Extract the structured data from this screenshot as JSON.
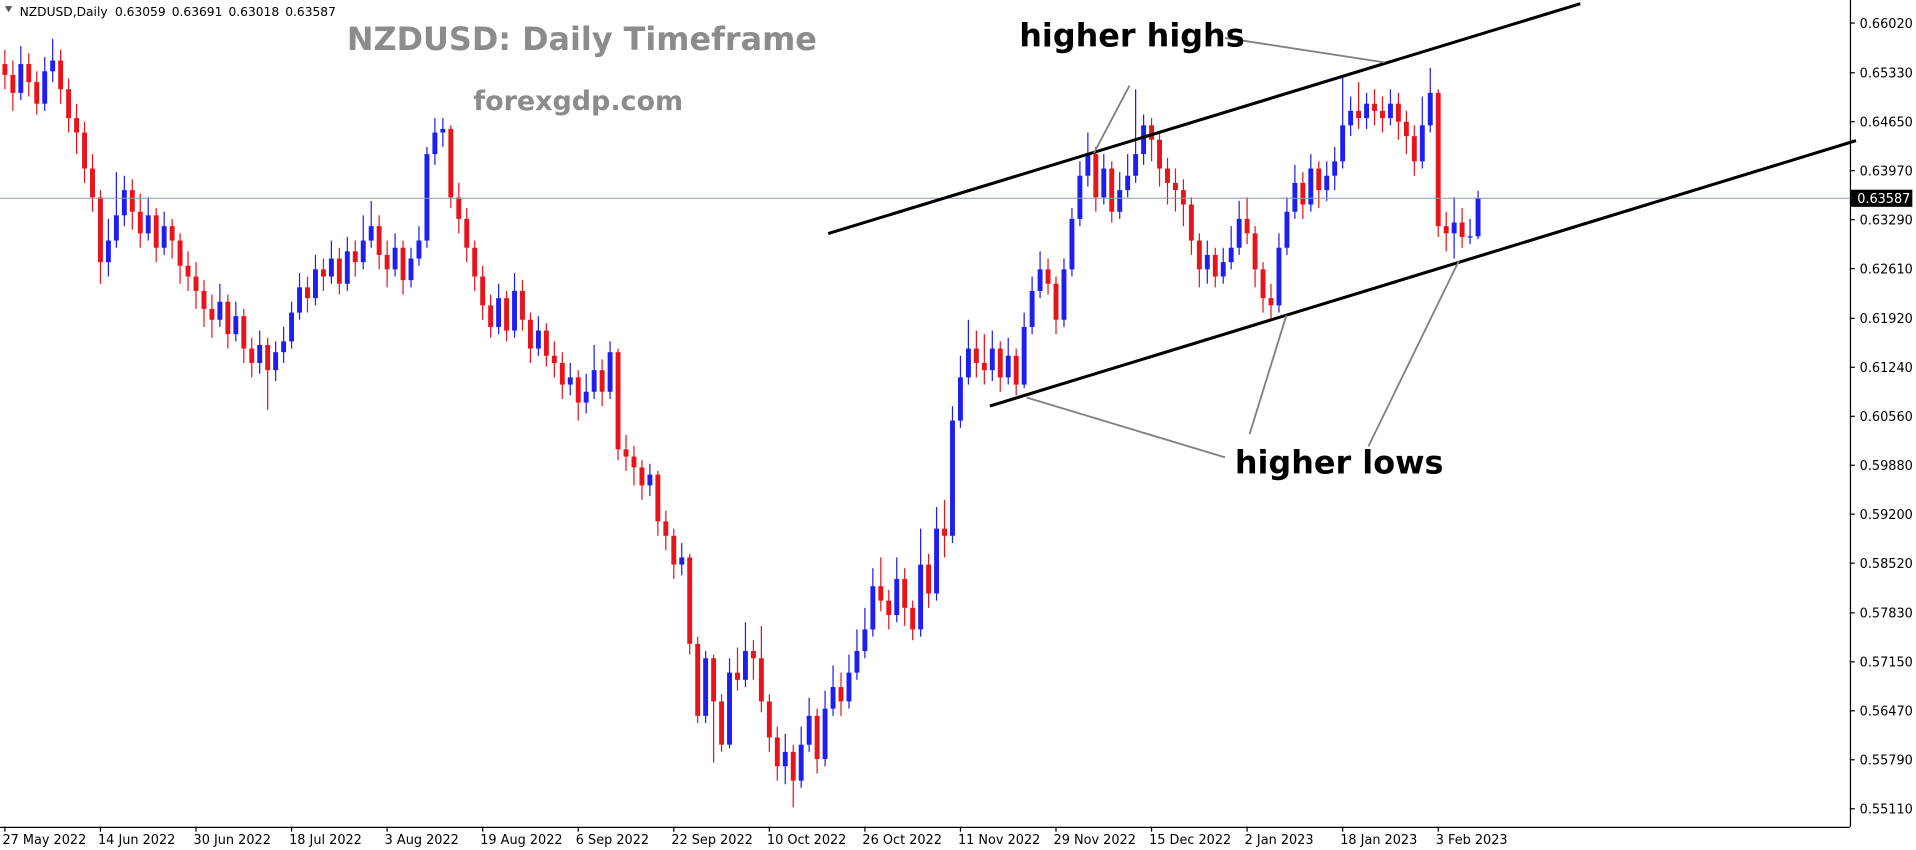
{
  "chart_data": {
    "type": "candlestick",
    "symbol": "NZDUSD,Daily",
    "title": "NZDUSD: Daily Timeframe",
    "subtitle": "forexgdp.com",
    "annotations": [
      "higher highs",
      "higher lows"
    ],
    "up_color": "#1e1ef0",
    "down_color": "#e8141c",
    "grid": false,
    "ylim": [
      0.5486,
      0.6634
    ],
    "yticks": [
      {
        "value": 0.6602,
        "label": "0.66020"
      },
      {
        "value": 0.6533,
        "label": "0.65330"
      },
      {
        "value": 0.6465,
        "label": "0.64650"
      },
      {
        "value": 0.6397,
        "label": "0.63970"
      },
      {
        "value": 0.6329,
        "label": "0.63290"
      },
      {
        "value": 0.6261,
        "label": "0.62610"
      },
      {
        "value": 0.6192,
        "label": "0.61920"
      },
      {
        "value": 0.6124,
        "label": "0.61240"
      },
      {
        "value": 0.6056,
        "label": "0.60560"
      },
      {
        "value": 0.5988,
        "label": "0.59880"
      },
      {
        "value": 0.592,
        "label": "0.59200"
      },
      {
        "value": 0.5852,
        "label": "0.58520"
      },
      {
        "value": 0.5783,
        "label": "0.57830"
      },
      {
        "value": 0.5715,
        "label": "0.57150"
      },
      {
        "value": 0.5647,
        "label": "0.56470"
      },
      {
        "value": 0.5579,
        "label": "0.55790"
      },
      {
        "value": 0.5511,
        "label": "0.55110"
      }
    ],
    "categories": [
      "27 May 2022",
      null,
      null,
      null,
      null,
      null,
      null,
      null,
      null,
      null,
      null,
      null,
      "14 Jun 2022",
      null,
      null,
      null,
      null,
      null,
      null,
      null,
      null,
      null,
      null,
      null,
      "30 Jun 2022",
      null,
      null,
      null,
      null,
      null,
      null,
      null,
      null,
      null,
      null,
      null,
      "18 Jul 2022",
      null,
      null,
      null,
      null,
      null,
      null,
      null,
      null,
      null,
      null,
      null,
      "3 Aug 2022",
      null,
      null,
      null,
      null,
      null,
      null,
      null,
      null,
      null,
      null,
      null,
      "19 Aug 2022",
      null,
      null,
      null,
      null,
      null,
      null,
      null,
      null,
      null,
      null,
      null,
      "6 Sep 2022",
      null,
      null,
      null,
      null,
      null,
      null,
      null,
      null,
      null,
      null,
      null,
      "22 Sep 2022",
      null,
      null,
      null,
      null,
      null,
      null,
      null,
      null,
      null,
      null,
      null,
      "10 Oct 2022",
      null,
      null,
      null,
      null,
      null,
      null,
      null,
      null,
      null,
      null,
      null,
      "26 Oct 2022",
      null,
      null,
      null,
      null,
      null,
      null,
      null,
      null,
      null,
      null,
      null,
      "11 Nov 2022",
      null,
      null,
      null,
      null,
      null,
      null,
      null,
      null,
      null,
      null,
      null,
      "29 Nov 2022",
      null,
      null,
      null,
      null,
      null,
      null,
      null,
      null,
      null,
      null,
      null,
      "15 Dec 2022",
      null,
      null,
      null,
      null,
      null,
      null,
      null,
      null,
      null,
      null,
      null,
      "2 Jan 2023",
      null,
      null,
      null,
      null,
      null,
      null,
      null,
      null,
      null,
      null,
      null,
      "18 Jan 2023",
      null,
      null,
      null,
      null,
      null,
      null,
      null,
      null,
      null,
      null,
      null,
      "3 Feb 2023",
      null,
      null,
      null,
      null,
      null
    ],
    "candles": [
      [
        0.6545,
        0.6565,
        0.651,
        0.653
      ],
      [
        0.653,
        0.655,
        0.648,
        0.6505
      ],
      [
        0.6505,
        0.657,
        0.6495,
        0.6545
      ],
      [
        0.6545,
        0.656,
        0.65,
        0.652
      ],
      [
        0.652,
        0.6535,
        0.6475,
        0.649
      ],
      [
        0.649,
        0.6555,
        0.648,
        0.6535
      ],
      [
        0.6535,
        0.658,
        0.652,
        0.655
      ],
      [
        0.655,
        0.6565,
        0.649,
        0.651
      ],
      [
        0.651,
        0.6525,
        0.645,
        0.647
      ],
      [
        0.647,
        0.649,
        0.642,
        0.645
      ],
      [
        0.645,
        0.6465,
        0.638,
        0.64
      ],
      [
        0.64,
        0.642,
        0.634,
        0.636
      ],
      [
        0.636,
        0.637,
        0.624,
        0.627
      ],
      [
        0.627,
        0.633,
        0.625,
        0.63
      ],
      [
        0.63,
        0.6395,
        0.629,
        0.6335
      ],
      [
        0.6335,
        0.639,
        0.632,
        0.637
      ],
      [
        0.637,
        0.6385,
        0.6315,
        0.634
      ],
      [
        0.634,
        0.6365,
        0.629,
        0.631
      ],
      [
        0.631,
        0.636,
        0.63,
        0.6335
      ],
      [
        0.6335,
        0.6345,
        0.627,
        0.629
      ],
      [
        0.629,
        0.634,
        0.628,
        0.632
      ],
      [
        0.632,
        0.633,
        0.6275,
        0.63
      ],
      [
        0.63,
        0.631,
        0.624,
        0.6265
      ],
      [
        0.6265,
        0.6285,
        0.623,
        0.625
      ],
      [
        0.625,
        0.627,
        0.6205,
        0.623
      ],
      [
        0.623,
        0.6245,
        0.618,
        0.6205
      ],
      [
        0.6205,
        0.6225,
        0.6165,
        0.619
      ],
      [
        0.619,
        0.624,
        0.618,
        0.6215
      ],
      [
        0.6215,
        0.6225,
        0.615,
        0.617
      ],
      [
        0.617,
        0.6215,
        0.616,
        0.6195
      ],
      [
        0.6195,
        0.6205,
        0.613,
        0.615
      ],
      [
        0.615,
        0.6165,
        0.611,
        0.613
      ],
      [
        0.613,
        0.6175,
        0.6115,
        0.6155
      ],
      [
        0.6155,
        0.6165,
        0.6065,
        0.612
      ],
      [
        0.612,
        0.616,
        0.6105,
        0.6145
      ],
      [
        0.6145,
        0.618,
        0.613,
        0.616
      ],
      [
        0.616,
        0.6215,
        0.615,
        0.62
      ],
      [
        0.62,
        0.6255,
        0.619,
        0.6235
      ],
      [
        0.6235,
        0.625,
        0.62,
        0.622
      ],
      [
        0.622,
        0.628,
        0.621,
        0.626
      ],
      [
        0.626,
        0.6275,
        0.623,
        0.625
      ],
      [
        0.625,
        0.63,
        0.624,
        0.6275
      ],
      [
        0.6275,
        0.629,
        0.6225,
        0.624
      ],
      [
        0.624,
        0.6305,
        0.623,
        0.6285
      ],
      [
        0.6285,
        0.63,
        0.625,
        0.627
      ],
      [
        0.627,
        0.6335,
        0.626,
        0.63
      ],
      [
        0.63,
        0.6355,
        0.629,
        0.632
      ],
      [
        0.632,
        0.6335,
        0.626,
        0.628
      ],
      [
        0.628,
        0.63,
        0.6235,
        0.626
      ],
      [
        0.626,
        0.631,
        0.625,
        0.629
      ],
      [
        0.629,
        0.63,
        0.6225,
        0.6245
      ],
      [
        0.6245,
        0.629,
        0.6235,
        0.6275
      ],
      [
        0.6275,
        0.632,
        0.6265,
        0.63
      ],
      [
        0.63,
        0.643,
        0.629,
        0.642
      ],
      [
        0.642,
        0.647,
        0.6405,
        0.645
      ],
      [
        0.645,
        0.647,
        0.643,
        0.6455
      ],
      [
        0.6455,
        0.646,
        0.6345,
        0.636
      ],
      [
        0.636,
        0.638,
        0.631,
        0.633
      ],
      [
        0.633,
        0.6345,
        0.627,
        0.629
      ],
      [
        0.629,
        0.63,
        0.623,
        0.625
      ],
      [
        0.625,
        0.6265,
        0.619,
        0.621
      ],
      [
        0.621,
        0.6225,
        0.6165,
        0.618
      ],
      [
        0.618,
        0.624,
        0.617,
        0.622
      ],
      [
        0.622,
        0.623,
        0.616,
        0.6175
      ],
      [
        0.6175,
        0.6255,
        0.6165,
        0.623
      ],
      [
        0.623,
        0.6245,
        0.6175,
        0.619
      ],
      [
        0.619,
        0.62,
        0.613,
        0.615
      ],
      [
        0.615,
        0.6195,
        0.614,
        0.6175
      ],
      [
        0.6175,
        0.6185,
        0.6125,
        0.614
      ],
      [
        0.614,
        0.616,
        0.611,
        0.613
      ],
      [
        0.613,
        0.6145,
        0.608,
        0.61
      ],
      [
        0.61,
        0.613,
        0.6085,
        0.611
      ],
      [
        0.611,
        0.612,
        0.605,
        0.6075
      ],
      [
        0.6075,
        0.6115,
        0.606,
        0.609
      ],
      [
        0.609,
        0.6155,
        0.608,
        0.612
      ],
      [
        0.612,
        0.6135,
        0.607,
        0.609
      ],
      [
        0.609,
        0.616,
        0.608,
        0.6145
      ],
      [
        0.6145,
        0.615,
        0.5995,
        0.601
      ],
      [
        0.601,
        0.603,
        0.598,
        0.6
      ],
      [
        0.6,
        0.6015,
        0.596,
        0.5985
      ],
      [
        0.5985,
        0.5995,
        0.594,
        0.596
      ],
      [
        0.596,
        0.599,
        0.5945,
        0.5975
      ],
      [
        0.5975,
        0.598,
        0.589,
        0.591
      ],
      [
        0.591,
        0.5925,
        0.587,
        0.589
      ],
      [
        0.589,
        0.59,
        0.583,
        0.585
      ],
      [
        0.585,
        0.588,
        0.5835,
        0.586
      ],
      [
        0.586,
        0.5865,
        0.5725,
        0.574
      ],
      [
        0.574,
        0.575,
        0.563,
        0.564
      ],
      [
        0.564,
        0.573,
        0.563,
        0.572
      ],
      [
        0.572,
        0.5725,
        0.5575,
        0.566
      ],
      [
        0.566,
        0.567,
        0.559,
        0.56
      ],
      [
        0.56,
        0.572,
        0.5595,
        0.57
      ],
      [
        0.57,
        0.5735,
        0.5675,
        0.569
      ],
      [
        0.569,
        0.577,
        0.568,
        0.573
      ],
      [
        0.573,
        0.5745,
        0.569,
        0.572
      ],
      [
        0.572,
        0.5765,
        0.5645,
        0.566
      ],
      [
        0.566,
        0.567,
        0.559,
        0.561
      ],
      [
        0.561,
        0.5625,
        0.555,
        0.557
      ],
      [
        0.557,
        0.5615,
        0.5545,
        0.559
      ],
      [
        0.559,
        0.56,
        0.5513,
        0.555
      ],
      [
        0.555,
        0.5625,
        0.554,
        0.56
      ],
      [
        0.56,
        0.5665,
        0.559,
        0.564
      ],
      [
        0.564,
        0.565,
        0.556,
        0.558
      ],
      [
        0.558,
        0.5675,
        0.557,
        0.565
      ],
      [
        0.565,
        0.571,
        0.564,
        0.568
      ],
      [
        0.568,
        0.57,
        0.564,
        0.566
      ],
      [
        0.566,
        0.5725,
        0.565,
        0.57
      ],
      [
        0.57,
        0.576,
        0.569,
        0.573
      ],
      [
        0.573,
        0.579,
        0.572,
        0.576
      ],
      [
        0.576,
        0.5845,
        0.575,
        0.582
      ],
      [
        0.582,
        0.586,
        0.5785,
        0.58
      ],
      [
        0.58,
        0.5815,
        0.576,
        0.578
      ],
      [
        0.578,
        0.586,
        0.577,
        0.583
      ],
      [
        0.583,
        0.5845,
        0.5765,
        0.579
      ],
      [
        0.579,
        0.58,
        0.5745,
        0.576
      ],
      [
        0.576,
        0.59,
        0.575,
        0.585
      ],
      [
        0.585,
        0.5865,
        0.579,
        0.581
      ],
      [
        0.581,
        0.593,
        0.58,
        0.59
      ],
      [
        0.59,
        0.594,
        0.586,
        0.589
      ],
      [
        0.589,
        0.607,
        0.588,
        0.605
      ],
      [
        0.605,
        0.614,
        0.604,
        0.611
      ],
      [
        0.611,
        0.619,
        0.61,
        0.615
      ],
      [
        0.615,
        0.6175,
        0.611,
        0.613
      ],
      [
        0.613,
        0.617,
        0.61,
        0.612
      ],
      [
        0.612,
        0.6175,
        0.6105,
        0.615
      ],
      [
        0.615,
        0.616,
        0.609,
        0.611
      ],
      [
        0.611,
        0.6165,
        0.61,
        0.614
      ],
      [
        0.614,
        0.615,
        0.6085,
        0.61
      ],
      [
        0.61,
        0.62,
        0.6095,
        0.618
      ],
      [
        0.618,
        0.625,
        0.617,
        0.623
      ],
      [
        0.623,
        0.6285,
        0.622,
        0.626
      ],
      [
        0.626,
        0.6275,
        0.6225,
        0.624
      ],
      [
        0.624,
        0.625,
        0.617,
        0.619
      ],
      [
        0.619,
        0.6275,
        0.618,
        0.626
      ],
      [
        0.626,
        0.6345,
        0.625,
        0.633
      ],
      [
        0.633,
        0.641,
        0.632,
        0.639
      ],
      [
        0.639,
        0.645,
        0.6375,
        0.642
      ],
      [
        0.642,
        0.643,
        0.634,
        0.636
      ],
      [
        0.636,
        0.642,
        0.635,
        0.64
      ],
      [
        0.64,
        0.641,
        0.6325,
        0.634
      ],
      [
        0.634,
        0.6395,
        0.633,
        0.637
      ],
      [
        0.637,
        0.642,
        0.636,
        0.639
      ],
      [
        0.639,
        0.651,
        0.638,
        0.642
      ],
      [
        0.642,
        0.6475,
        0.6405,
        0.646
      ],
      [
        0.646,
        0.647,
        0.641,
        0.644
      ],
      [
        0.644,
        0.645,
        0.6375,
        0.64
      ],
      [
        0.64,
        0.6415,
        0.635,
        0.638
      ],
      [
        0.638,
        0.64,
        0.634,
        0.637
      ],
      [
        0.637,
        0.6385,
        0.632,
        0.635
      ],
      [
        0.635,
        0.636,
        0.628,
        0.63
      ],
      [
        0.63,
        0.631,
        0.6235,
        0.626
      ],
      [
        0.626,
        0.63,
        0.624,
        0.628
      ],
      [
        0.628,
        0.629,
        0.6235,
        0.625
      ],
      [
        0.625,
        0.629,
        0.624,
        0.627
      ],
      [
        0.627,
        0.632,
        0.626,
        0.629
      ],
      [
        0.629,
        0.6355,
        0.628,
        0.633
      ],
      [
        0.633,
        0.636,
        0.6295,
        0.631
      ],
      [
        0.631,
        0.632,
        0.6235,
        0.626
      ],
      [
        0.626,
        0.627,
        0.62,
        0.622
      ],
      [
        0.622,
        0.624,
        0.619,
        0.621
      ],
      [
        0.621,
        0.631,
        0.62,
        0.629
      ],
      [
        0.629,
        0.636,
        0.628,
        0.634
      ],
      [
        0.634,
        0.6405,
        0.633,
        0.638
      ],
      [
        0.638,
        0.6395,
        0.633,
        0.635
      ],
      [
        0.635,
        0.642,
        0.634,
        0.64
      ],
      [
        0.64,
        0.641,
        0.6345,
        0.637
      ],
      [
        0.637,
        0.641,
        0.6355,
        0.639
      ],
      [
        0.639,
        0.643,
        0.637,
        0.641
      ],
      [
        0.641,
        0.653,
        0.64,
        0.646
      ],
      [
        0.646,
        0.65,
        0.6445,
        0.648
      ],
      [
        0.648,
        0.652,
        0.6455,
        0.647
      ],
      [
        0.647,
        0.6505,
        0.6455,
        0.649
      ],
      [
        0.649,
        0.651,
        0.646,
        0.648
      ],
      [
        0.648,
        0.65,
        0.645,
        0.647
      ],
      [
        0.647,
        0.651,
        0.646,
        0.649
      ],
      [
        0.649,
        0.6505,
        0.644,
        0.6465
      ],
      [
        0.6465,
        0.648,
        0.642,
        0.6445
      ],
      [
        0.6445,
        0.646,
        0.639,
        0.641
      ],
      [
        0.641,
        0.65,
        0.64,
        0.646
      ],
      [
        0.646,
        0.654,
        0.645,
        0.6505
      ],
      [
        0.6505,
        0.651,
        0.6305,
        0.632
      ],
      [
        0.632,
        0.634,
        0.6285,
        0.631
      ],
      [
        0.631,
        0.636,
        0.6275,
        0.6325
      ],
      [
        0.6325,
        0.6345,
        0.629,
        0.6305
      ],
      [
        0.6305,
        0.633,
        0.6295,
        0.63059
      ],
      [
        0.63059,
        0.63691,
        0.63018,
        0.63587
      ]
    ]
  }
}
